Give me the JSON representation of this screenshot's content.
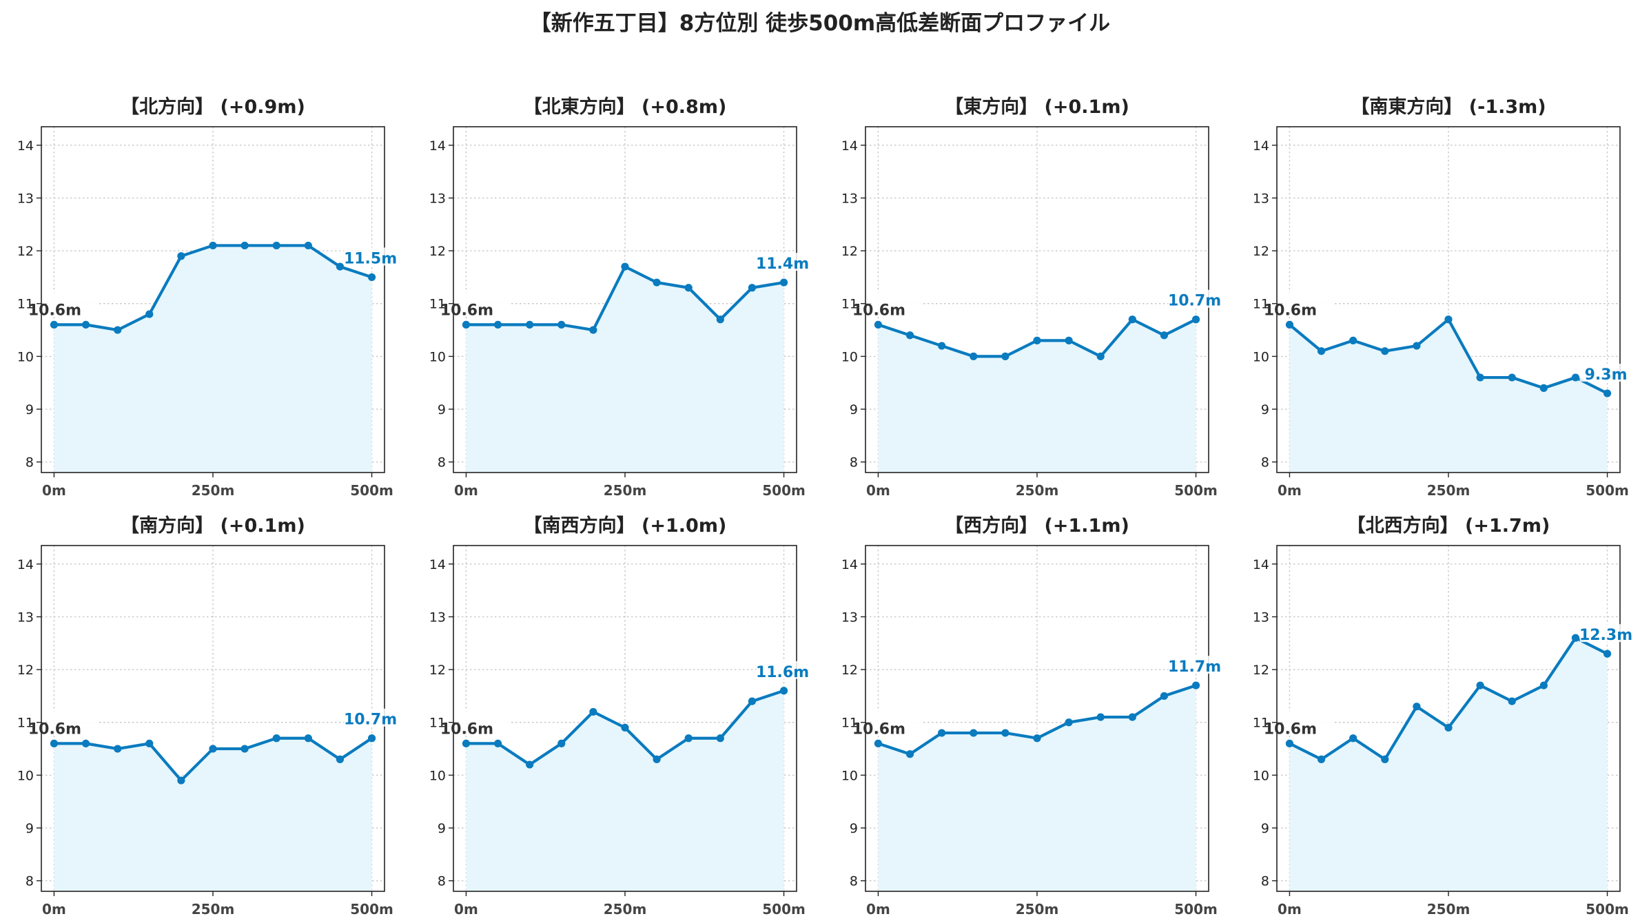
{
  "title": "【新作五丁目】8方位別 徒歩500m高低差断面プロファイル",
  "colors": {
    "line": "#0a7bbf",
    "fill": "#e6f6fc",
    "grid": "#c8c8c8",
    "start_label": "#333333",
    "end_label": "#0a7bbf"
  },
  "chart_data": [
    {
      "type": "area",
      "title": "【北方向】 (+0.9m)",
      "start_label": "10.6m",
      "end_label": "11.5m",
      "x": [
        0,
        50,
        100,
        150,
        200,
        250,
        300,
        350,
        400,
        450,
        500
      ],
      "y": [
        10.6,
        10.6,
        10.5,
        10.8,
        11.9,
        12.1,
        12.1,
        12.1,
        12.1,
        11.7,
        11.5
      ],
      "xticks": [
        "0m",
        "250m",
        "500m"
      ],
      "yticks": [
        8,
        9,
        10,
        11,
        12,
        13,
        14
      ],
      "xlim": [
        -20,
        520
      ],
      "ylim": [
        7.8,
        14.35
      ],
      "grid": true
    },
    {
      "type": "area",
      "title": "【北東方向】 (+0.8m)",
      "start_label": "10.6m",
      "end_label": "11.4m",
      "x": [
        0,
        50,
        100,
        150,
        200,
        250,
        300,
        350,
        400,
        450,
        500
      ],
      "y": [
        10.6,
        10.6,
        10.6,
        10.6,
        10.5,
        11.7,
        11.4,
        11.3,
        10.7,
        11.3,
        11.4
      ],
      "xticks": [
        "0m",
        "250m",
        "500m"
      ],
      "yticks": [
        8,
        9,
        10,
        11,
        12,
        13,
        14
      ],
      "xlim": [
        -20,
        520
      ],
      "ylim": [
        7.8,
        14.35
      ],
      "grid": true
    },
    {
      "type": "area",
      "title": "【東方向】 (+0.1m)",
      "start_label": "10.6m",
      "end_label": "10.7m",
      "x": [
        0,
        50,
        100,
        150,
        200,
        250,
        300,
        350,
        400,
        450,
        500
      ],
      "y": [
        10.6,
        10.4,
        10.2,
        10.0,
        10.0,
        10.3,
        10.3,
        10.0,
        10.7,
        10.4,
        10.7
      ],
      "xticks": [
        "0m",
        "250m",
        "500m"
      ],
      "yticks": [
        8,
        9,
        10,
        11,
        12,
        13,
        14
      ],
      "xlim": [
        -20,
        520
      ],
      "ylim": [
        7.8,
        14.35
      ],
      "grid": true
    },
    {
      "type": "area",
      "title": "【南東方向】 (-1.3m)",
      "start_label": "10.6m",
      "end_label": "9.3m",
      "x": [
        0,
        50,
        100,
        150,
        200,
        250,
        300,
        350,
        400,
        450,
        500
      ],
      "y": [
        10.6,
        10.1,
        10.3,
        10.1,
        10.2,
        10.7,
        9.6,
        9.6,
        9.4,
        9.6,
        9.3
      ],
      "xticks": [
        "0m",
        "250m",
        "500m"
      ],
      "yticks": [
        8,
        9,
        10,
        11,
        12,
        13,
        14
      ],
      "xlim": [
        -20,
        520
      ],
      "ylim": [
        7.8,
        14.35
      ],
      "grid": true
    },
    {
      "type": "area",
      "title": "【南方向】 (+0.1m)",
      "start_label": "10.6m",
      "end_label": "10.7m",
      "x": [
        0,
        50,
        100,
        150,
        200,
        250,
        300,
        350,
        400,
        450,
        500
      ],
      "y": [
        10.6,
        10.6,
        10.5,
        10.6,
        9.9,
        10.5,
        10.5,
        10.7,
        10.7,
        10.3,
        10.7
      ],
      "xticks": [
        "0m",
        "250m",
        "500m"
      ],
      "yticks": [
        8,
        9,
        10,
        11,
        12,
        13,
        14
      ],
      "xlim": [
        -20,
        520
      ],
      "ylim": [
        7.8,
        14.35
      ],
      "grid": true
    },
    {
      "type": "area",
      "title": "【南西方向】 (+1.0m)",
      "start_label": "10.6m",
      "end_label": "11.6m",
      "x": [
        0,
        50,
        100,
        150,
        200,
        250,
        300,
        350,
        400,
        450,
        500
      ],
      "y": [
        10.6,
        10.6,
        10.2,
        10.6,
        11.2,
        10.9,
        10.3,
        10.7,
        10.7,
        11.4,
        11.6
      ],
      "xticks": [
        "0m",
        "250m",
        "500m"
      ],
      "yticks": [
        8,
        9,
        10,
        11,
        12,
        13,
        14
      ],
      "xlim": [
        -20,
        520
      ],
      "ylim": [
        7.8,
        14.35
      ],
      "grid": true
    },
    {
      "type": "area",
      "title": "【西方向】 (+1.1m)",
      "start_label": "10.6m",
      "end_label": "11.7m",
      "x": [
        0,
        50,
        100,
        150,
        200,
        250,
        300,
        350,
        400,
        450,
        500
      ],
      "y": [
        10.6,
        10.4,
        10.8,
        10.8,
        10.8,
        10.7,
        11.0,
        11.1,
        11.1,
        11.5,
        11.7
      ],
      "xticks": [
        "0m",
        "250m",
        "500m"
      ],
      "yticks": [
        8,
        9,
        10,
        11,
        12,
        13,
        14
      ],
      "xlim": [
        -20,
        520
      ],
      "ylim": [
        7.8,
        14.35
      ],
      "grid": true
    },
    {
      "type": "area",
      "title": "【北西方向】 (+1.7m)",
      "start_label": "10.6m",
      "end_label": "12.3m",
      "x": [
        0,
        50,
        100,
        150,
        200,
        250,
        300,
        350,
        400,
        450,
        500
      ],
      "y": [
        10.6,
        10.3,
        10.7,
        10.3,
        11.3,
        10.9,
        11.7,
        11.4,
        11.7,
        12.6,
        12.3
      ],
      "xticks": [
        "0m",
        "250m",
        "500m"
      ],
      "yticks": [
        8,
        9,
        10,
        11,
        12,
        13,
        14
      ],
      "xlim": [
        -20,
        520
      ],
      "ylim": [
        7.8,
        14.35
      ],
      "grid": true
    }
  ]
}
